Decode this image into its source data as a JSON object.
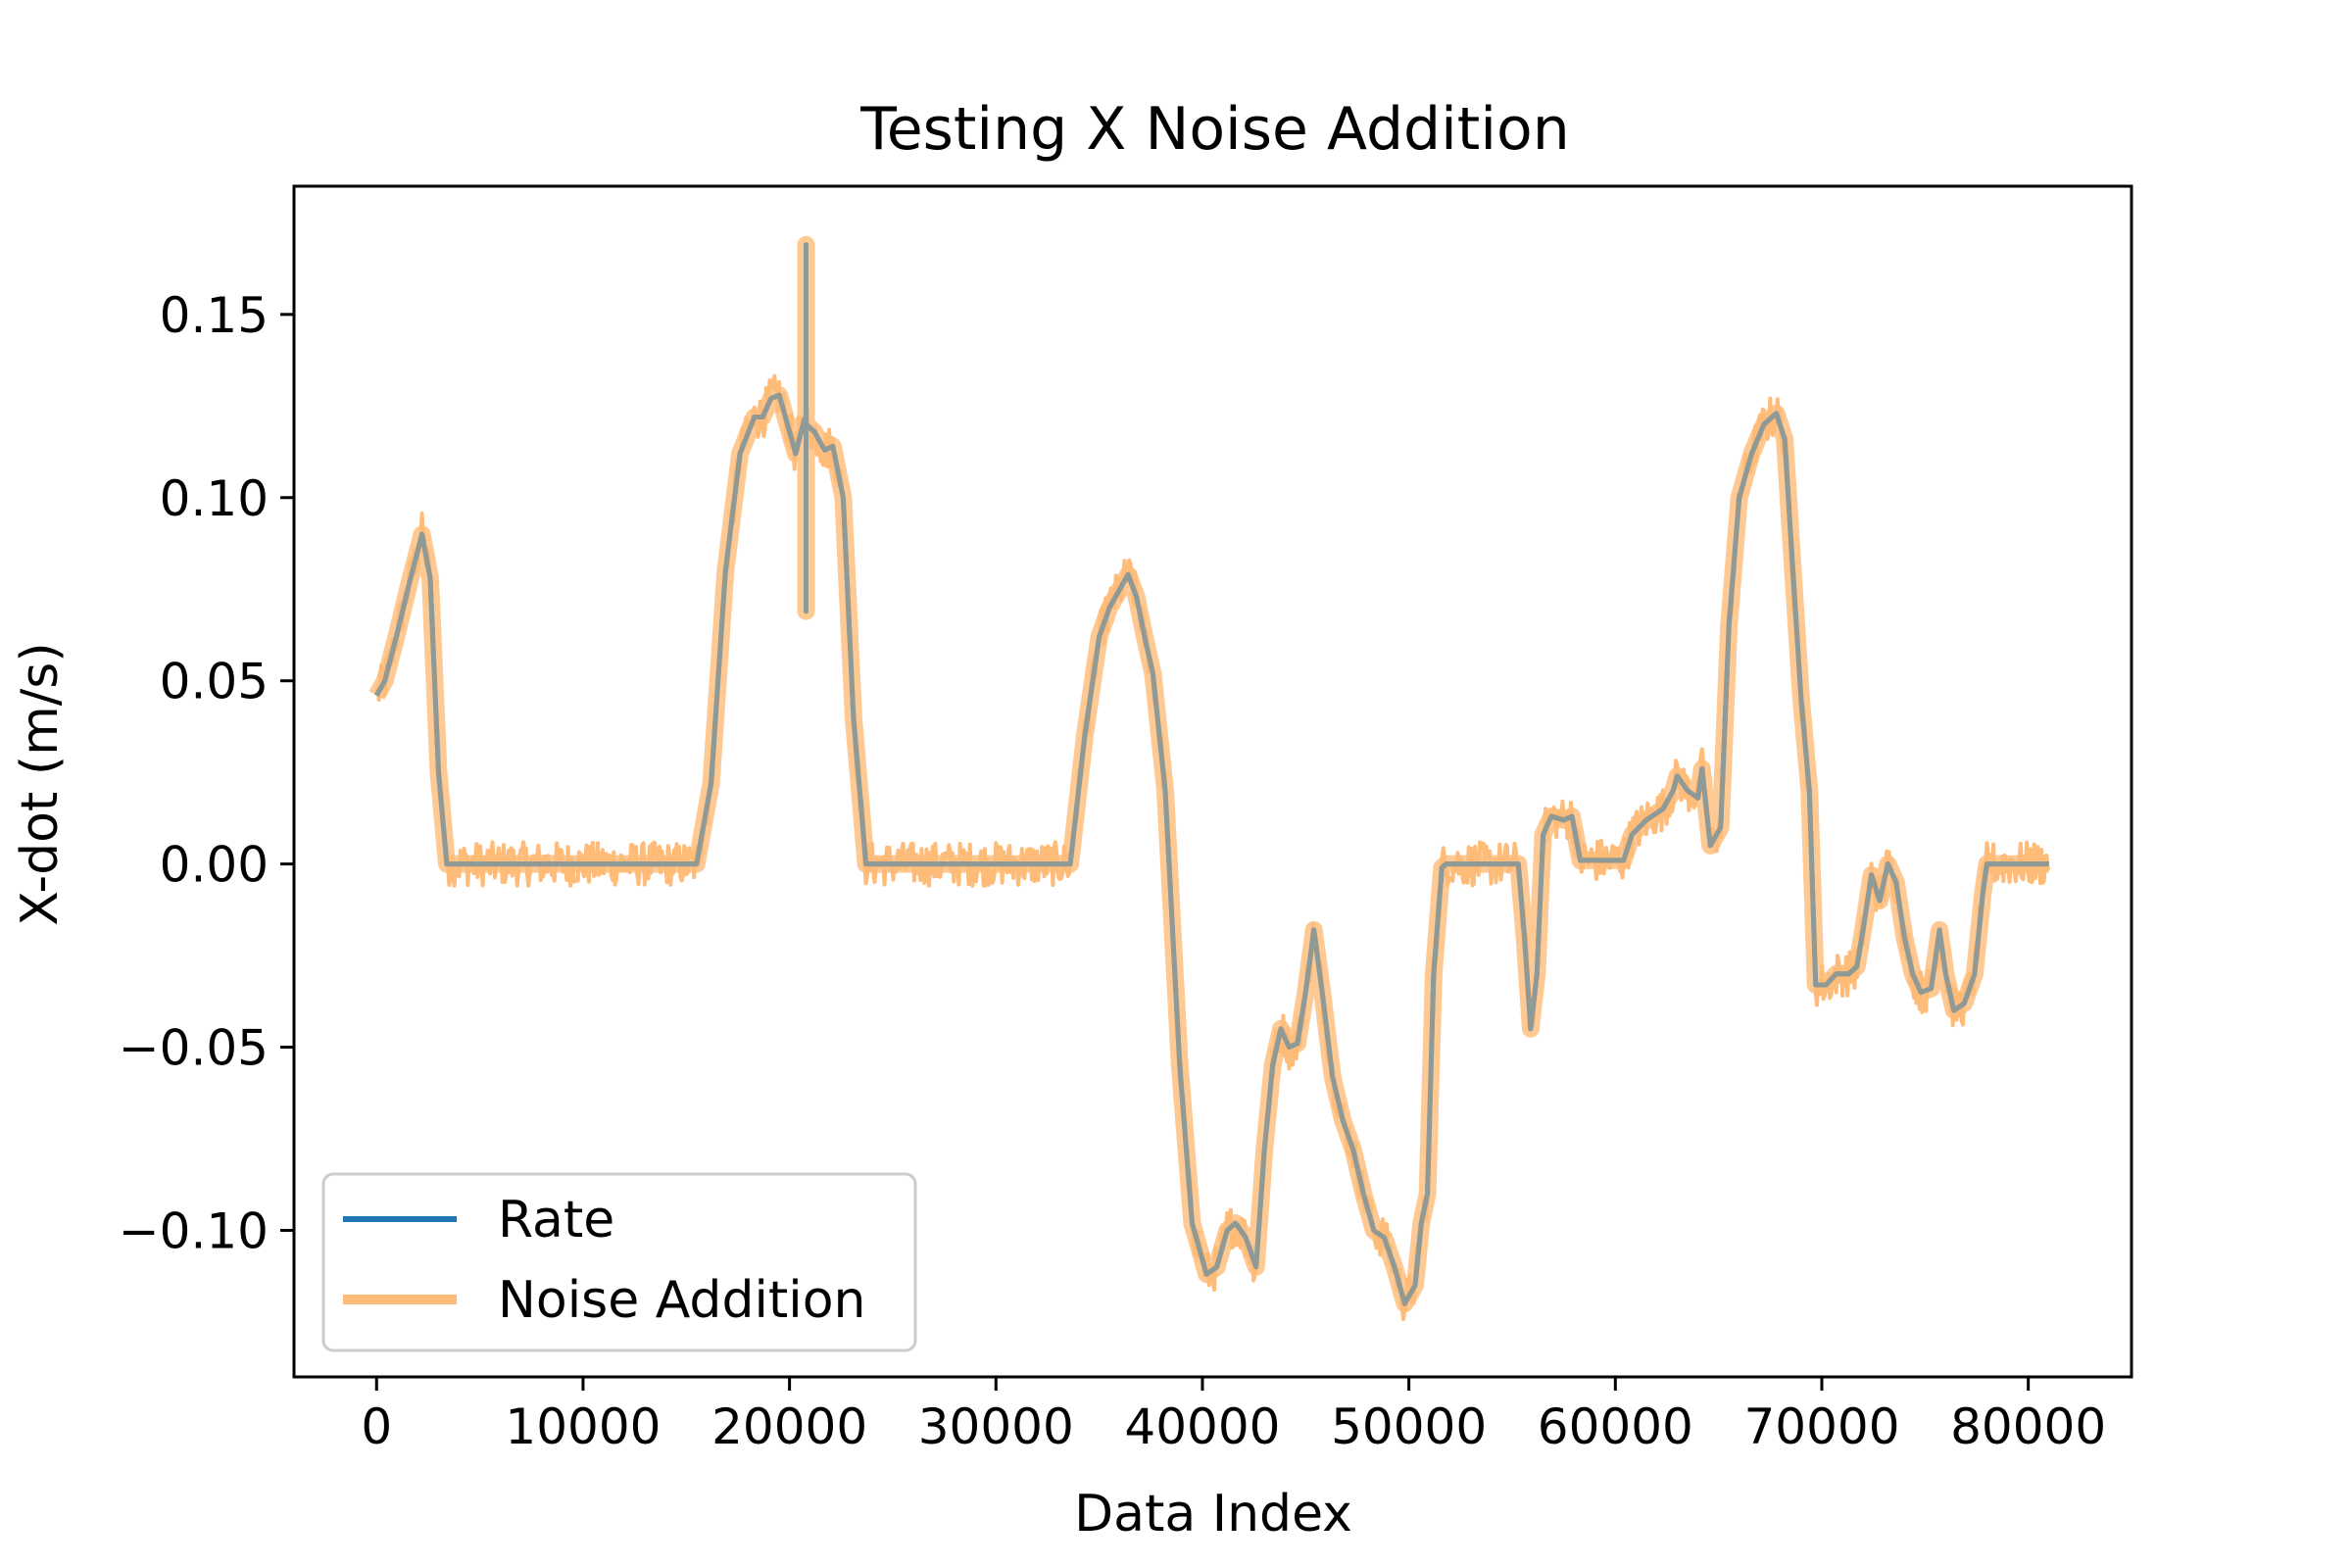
{
  "chart_data": {
    "type": "line",
    "title": "Testing X Noise Addition",
    "xlabel": "Data Index",
    "ylabel": "X-dot (m/s)",
    "xlim": [
      -4000,
      85000
    ],
    "ylim": [
      -0.14,
      0.185
    ],
    "xticks": [
      0,
      10000,
      20000,
      30000,
      40000,
      50000,
      60000,
      70000,
      80000
    ],
    "xtick_labels": [
      "0",
      "10000",
      "20000",
      "30000",
      "40000",
      "50000",
      "60000",
      "70000",
      "80000"
    ],
    "yticks": [
      0.15,
      0.1,
      0.05,
      0.0,
      -0.05,
      -0.1
    ],
    "ytick_labels": [
      "0.15",
      "0.10",
      "0.05",
      "0.00",
      "−0.05",
      "−0.10"
    ],
    "grid": false,
    "legend_position": "lower-left",
    "noise_band": 0.006,
    "series": [
      {
        "name": "Rate",
        "color": "#1f77b4",
        "x": [
          0,
          400,
          1000,
          1600,
          2200,
          2600,
          3000,
          3400,
          15500,
          16200,
          16900,
          17600,
          18300,
          18700,
          19100,
          19500,
          19900,
          20300,
          20700,
          20800,
          20801,
          20802,
          20803,
          21200,
          21700,
          22100,
          22600,
          23100,
          23700,
          33600,
          34300,
          35000,
          35500,
          36000,
          36400,
          36800,
          37200,
          37600,
          38200,
          38900,
          39500,
          40200,
          40700,
          41200,
          41600,
          42100,
          42600,
          43000,
          43400,
          43800,
          44200,
          44600,
          45000,
          45400,
          45800,
          46300,
          46800,
          47300,
          47800,
          48300,
          48800,
          49300,
          49800,
          50300,
          50600,
          50900,
          51200,
          51600,
          51800,
          52000,
          55300,
          55600,
          55900,
          56200,
          56500,
          56900,
          57500,
          57900,
          58300,
          60400,
          60800,
          61500,
          62300,
          62800,
          63000,
          63500,
          64000,
          64200,
          64600,
          65100,
          65500,
          66000,
          66600,
          67200,
          67800,
          68200,
          68600,
          69000,
          69400,
          69700,
          70200,
          70700,
          71300,
          71700,
          72000,
          72400,
          72800,
          73200,
          73600,
          74000,
          74400,
          74800,
          75300,
          75700,
          76000,
          76400,
          76900,
          77400,
          77800,
          78000,
          78500,
          81000
        ],
        "values": [
          0.046,
          0.05,
          0.063,
          0.077,
          0.09,
          0.078,
          0.025,
          0.0,
          0.0,
          0.022,
          0.08,
          0.112,
          0.122,
          0.122,
          0.127,
          0.128,
          0.12,
          0.112,
          0.121,
          0.122,
          0.169,
          0.069,
          0.12,
          0.118,
          0.113,
          0.114,
          0.1,
          0.04,
          0.0,
          0.0,
          0.035,
          0.062,
          0.07,
          0.075,
          0.079,
          0.073,
          0.062,
          0.052,
          0.02,
          -0.055,
          -0.098,
          -0.112,
          -0.11,
          -0.1,
          -0.098,
          -0.102,
          -0.11,
          -0.078,
          -0.055,
          -0.045,
          -0.05,
          -0.049,
          -0.035,
          -0.018,
          -0.035,
          -0.058,
          -0.07,
          -0.078,
          -0.09,
          -0.1,
          -0.102,
          -0.11,
          -0.12,
          -0.115,
          -0.098,
          -0.09,
          -0.03,
          -0.001,
          0.0,
          0.0,
          0.0,
          -0.02,
          -0.045,
          -0.03,
          0.008,
          0.013,
          0.012,
          0.013,
          0.001,
          0.001,
          0.008,
          0.012,
          0.015,
          0.02,
          0.024,
          0.02,
          0.018,
          0.026,
          0.005,
          0.01,
          0.065,
          0.1,
          0.112,
          0.12,
          0.123,
          0.116,
          0.08,
          0.045,
          0.02,
          -0.033,
          -0.033,
          -0.03,
          -0.03,
          -0.028,
          -0.018,
          -0.003,
          -0.01,
          0.0,
          -0.005,
          -0.02,
          -0.03,
          -0.035,
          -0.034,
          -0.018,
          -0.03,
          -0.04,
          -0.038,
          -0.03,
          -0.008,
          0.0,
          0.0,
          0.0
        ]
      },
      {
        "name": "Noise Addition",
        "color": "#ffbb78"
      }
    ]
  }
}
